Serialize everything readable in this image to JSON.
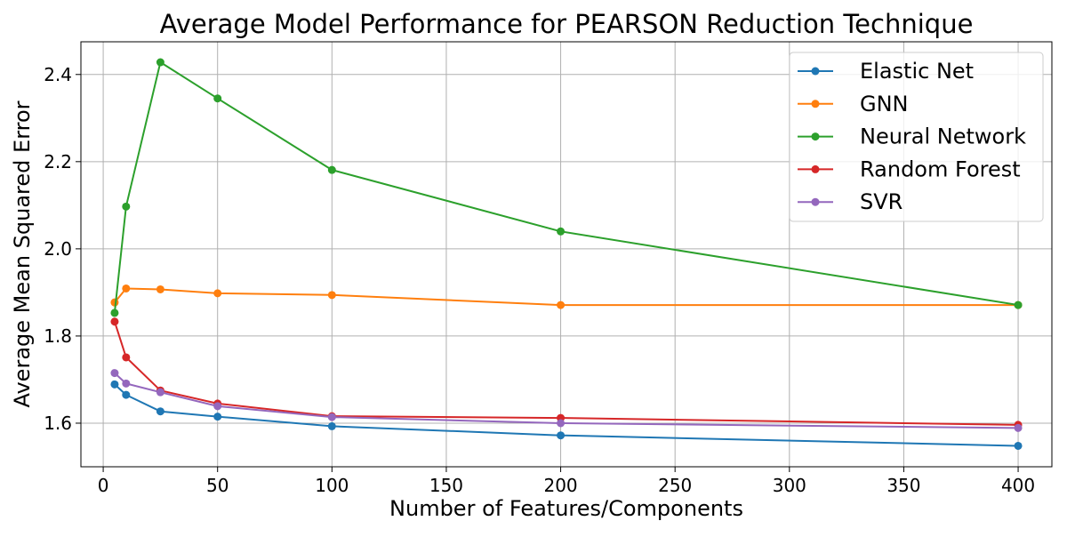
{
  "chart_data": {
    "type": "line",
    "title": "Average Model Performance for PEARSON Reduction Technique",
    "xlabel": "Number of Features/Components",
    "ylabel": "Average Mean Squared Error",
    "x": [
      5,
      10,
      25,
      50,
      100,
      200,
      400
    ],
    "xlim": [
      -9.75,
      414.75
    ],
    "ylim": [
      1.5,
      2.475
    ],
    "x_ticks": [
      "0",
      "50",
      "100",
      "150",
      "200",
      "250",
      "300",
      "350",
      "400"
    ],
    "y_ticks": [
      "1.6",
      "1.8",
      "2.0",
      "2.2",
      "2.4"
    ],
    "grid": true,
    "legend_position": "top-right",
    "series": [
      {
        "name": "Elastic Net",
        "color": "#1f77b4",
        "values": [
          1.689,
          1.665,
          1.627,
          1.615,
          1.593,
          1.572,
          1.548
        ]
      },
      {
        "name": "GNN",
        "color": "#ff7f0e",
        "values": [
          1.877,
          1.909,
          1.907,
          1.898,
          1.894,
          1.871,
          1.871
        ]
      },
      {
        "name": "Neural Network",
        "color": "#2ca02c",
        "values": [
          1.853,
          2.097,
          2.428,
          2.345,
          2.181,
          2.04,
          1.871
        ]
      },
      {
        "name": "Random Forest",
        "color": "#d62728",
        "values": [
          1.833,
          1.751,
          1.675,
          1.645,
          1.616,
          1.612,
          1.596
        ]
      },
      {
        "name": "SVR",
        "color": "#9467bd",
        "values": [
          1.715,
          1.691,
          1.671,
          1.639,
          1.614,
          1.6,
          1.589
        ]
      }
    ]
  }
}
